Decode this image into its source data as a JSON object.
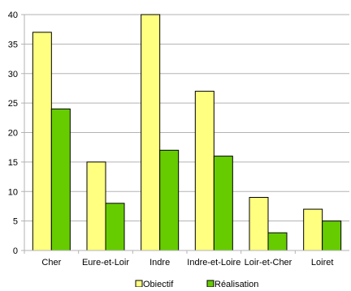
{
  "chart_data": {
    "type": "bar",
    "categories": [
      "Cher",
      "Eure-et-Loir",
      "Indre",
      "Indre-et-Loire",
      "Loir-et-Cher",
      "Loiret"
    ],
    "series": [
      {
        "name": "Objectif",
        "values": [
          37,
          15,
          40,
          27,
          9,
          7
        ],
        "color": "#ffff80"
      },
      {
        "name": "Réalisation",
        "values": [
          24,
          8,
          17,
          16,
          3,
          5
        ],
        "color": "#66cc00"
      }
    ],
    "yticks": [
      0,
      5,
      10,
      15,
      20,
      25,
      30,
      35,
      40
    ],
    "ylim": [
      0,
      40
    ],
    "grid": true,
    "legend": "bottom"
  }
}
